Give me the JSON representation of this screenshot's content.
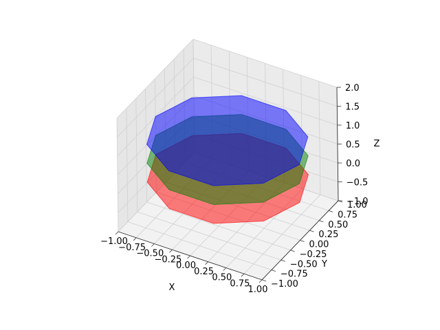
{
  "chart_data": {
    "type": "3d-polygons",
    "title": "",
    "xlabel": "X",
    "ylabel": "Y",
    "zlabel": "Z",
    "xlim": [
      -1.0,
      1.0
    ],
    "ylim": [
      -1.0,
      1.0
    ],
    "zlim": [
      -1.0,
      2.0
    ],
    "x_ticks": [
      "−1.00",
      "−0.75",
      "−0.50",
      "−0.25",
      "0.00",
      "0.25",
      "0.50",
      "0.75",
      "1.00"
    ],
    "y_ticks": [
      "−1.00",
      "−0.75",
      "−0.50",
      "−0.25",
      "0.00",
      "0.25",
      "0.50",
      "0.75",
      "1.00"
    ],
    "z_ticks": [
      "−1.0",
      "−0.5",
      "0.0",
      "0.5",
      "1.0",
      "1.5",
      "2.0"
    ],
    "x_tick_values": [
      -1.0,
      -0.75,
      -0.5,
      -0.25,
      0.0,
      0.25,
      0.5,
      0.75,
      1.0
    ],
    "y_tick_values": [
      -1.0,
      -0.75,
      -0.5,
      -0.25,
      0.0,
      0.25,
      0.5,
      0.75,
      1.0
    ],
    "z_tick_values": [
      -1.0,
      -0.5,
      0.0,
      0.5,
      1.0,
      1.5,
      2.0
    ],
    "grid": true,
    "series": [
      {
        "shape": "decagon",
        "radius": 1.0,
        "z": 0.0,
        "color": "#ff0000",
        "alpha": 0.5
      },
      {
        "shape": "decagon",
        "radius": 1.0,
        "z": 0.5,
        "color": "#008000",
        "alpha": 0.5
      },
      {
        "shape": "decagon",
        "radius": 1.0,
        "z": 1.0,
        "color": "#0000ff",
        "alpha": 0.5
      }
    ]
  }
}
